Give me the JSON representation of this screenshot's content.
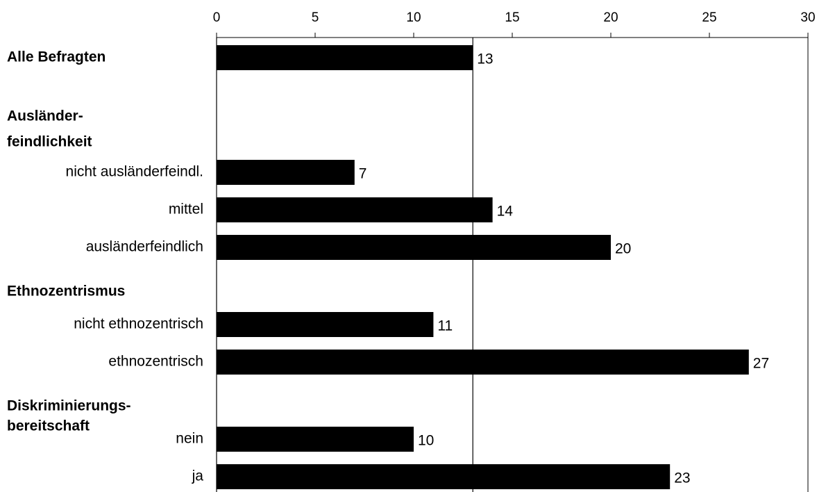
{
  "chart_data": {
    "type": "bar",
    "orientation": "horizontal",
    "xlim": [
      0,
      30
    ],
    "xticks": [
      "0",
      "5",
      "10",
      "15",
      "20",
      "25",
      "30"
    ],
    "xtick_values": [
      0,
      5,
      10,
      15,
      20,
      25,
      30
    ],
    "reference_line": 13,
    "groups": [
      {
        "label": [
          "Alle Befragten"
        ]
      },
      {
        "label": [
          "Ausländer-",
          "feindlichkeit"
        ]
      },
      {
        "label": [
          "Ethnozentrismus"
        ]
      },
      {
        "label": [
          "Diskriminierungs-",
          "bereitschaft"
        ]
      }
    ],
    "bars": [
      {
        "category": "",
        "group": 0,
        "value": 13,
        "data_label": "13"
      },
      {
        "category": "nicht ausländerfeindl.",
        "group": 1,
        "value": 7,
        "data_label": "7"
      },
      {
        "category": "mittel",
        "group": 1,
        "value": 14,
        "data_label": "14"
      },
      {
        "category": "ausländerfeindlich",
        "group": 1,
        "value": 20,
        "data_label": "20"
      },
      {
        "category": "nicht ethnozentrisch",
        "group": 2,
        "value": 11,
        "data_label": "11"
      },
      {
        "category": "ethnozentrisch",
        "group": 2,
        "value": 27,
        "data_label": "27"
      },
      {
        "category": "nein",
        "group": 3,
        "value": 10,
        "data_label": "10"
      },
      {
        "category": "ja",
        "group": 3,
        "value": 23,
        "data_label": "23"
      }
    ],
    "bar_color": "#000000",
    "grid": false
  }
}
